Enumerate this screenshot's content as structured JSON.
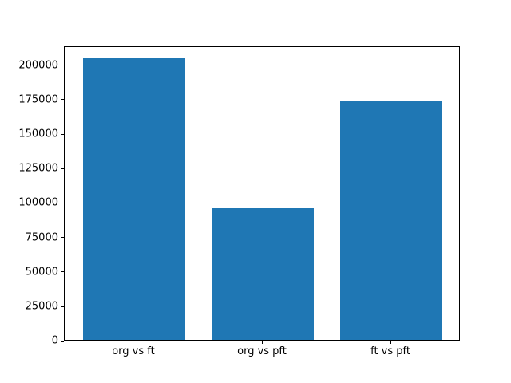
{
  "chart_data": {
    "type": "bar",
    "categories": [
      "org vs ft",
      "org vs pft",
      "ft vs pft"
    ],
    "values": [
      204500,
      95500,
      173500
    ],
    "title": "",
    "xlabel": "",
    "ylabel": "",
    "ylim": [
      0,
      214000
    ],
    "xlim": [
      -0.54,
      2.54
    ],
    "yticks": [
      0,
      25000,
      50000,
      75000,
      100000,
      125000,
      150000,
      175000,
      200000
    ],
    "bar_width_units": 0.8,
    "bar_color": "#1f77b4",
    "axis_color": "#000000",
    "background_color": "#ffffff",
    "grid": false,
    "legend": null
  }
}
